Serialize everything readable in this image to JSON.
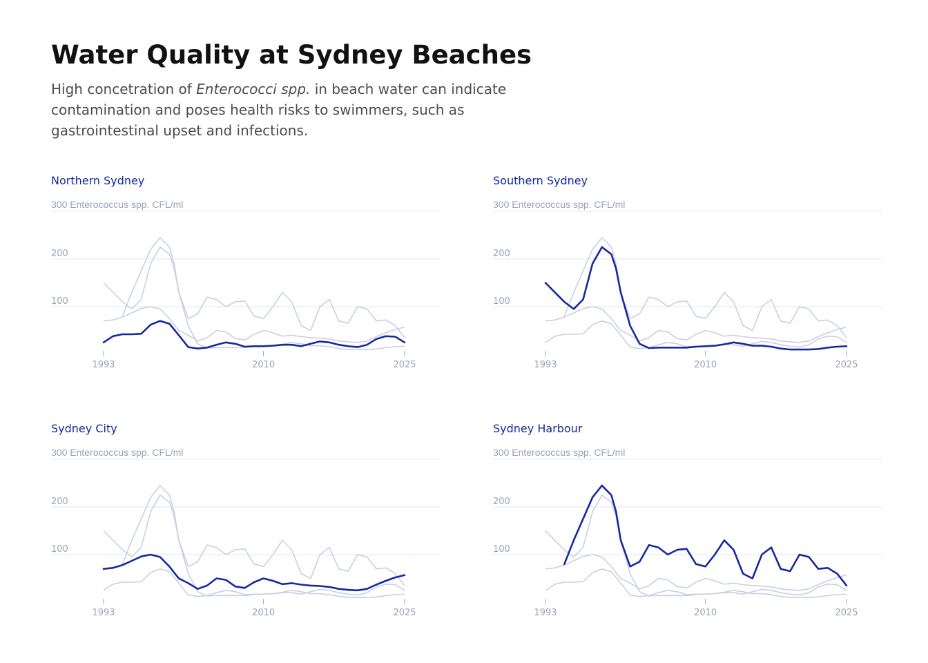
{
  "header": {
    "title": "Water Quality at Sydney Beaches",
    "subtitle_before": "High concetration of ",
    "subtitle_italic": "Enterococci spp.",
    "subtitle_after": " in beach water can indicate contamination and poses health risks to swimmers, such as gastrointestinal upset and infections."
  },
  "colors": {
    "highlight": "#1428a0",
    "context": "#c9cfe4",
    "grid": "#e3e5ec",
    "muted_text": "#9aa0b8"
  },
  "chart_data": {
    "type": "line",
    "unit_label": "300 Enterococcus spp. CFL/ml",
    "ylim": [
      0,
      300
    ],
    "y_ticks": [
      100,
      200
    ],
    "x_ticks": [
      1993,
      2010,
      2025
    ],
    "xlim": [
      1993,
      2025
    ],
    "grid": true,
    "panel_order": [
      "Northern Sydney",
      "Southern Sydney",
      "Sydney City",
      "Sydney Harbour"
    ],
    "series": [
      {
        "name": "Northern Sydney",
        "x": [
          1993,
          1994,
          1995,
          1996,
          1997,
          1998,
          1999,
          2000,
          2000.5,
          2001,
          2002,
          2003,
          2004,
          2005,
          2006,
          2007,
          2008,
          2009,
          2010,
          2011,
          2012,
          2013,
          2014,
          2015,
          2016,
          2017,
          2018,
          2019,
          2020,
          2021,
          2022,
          2023,
          2024,
          2025
        ],
        "y": [
          25,
          38,
          42,
          42,
          43,
          62,
          70,
          64,
          52,
          40,
          15,
          12,
          14,
          20,
          25,
          22,
          16,
          17,
          17,
          18,
          20,
          20,
          17,
          22,
          27,
          25,
          20,
          17,
          15,
          20,
          32,
          38,
          37,
          25
        ]
      },
      {
        "name": "Southern Sydney",
        "x": [
          1993,
          1994,
          1995,
          1996,
          1997,
          1998,
          1999,
          2000,
          2000.5,
          2001,
          2002,
          2003,
          2004,
          2005,
          2006,
          2007,
          2008,
          2009,
          2010,
          2011,
          2012,
          2013,
          2014,
          2015,
          2016,
          2017,
          2018,
          2019,
          2020,
          2021,
          2022,
          2023,
          2024,
          2025
        ],
        "y": [
          150,
          130,
          110,
          95,
          115,
          190,
          225,
          210,
          180,
          130,
          60,
          22,
          13,
          14,
          14,
          14,
          14,
          16,
          17,
          18,
          21,
          25,
          22,
          18,
          18,
          16,
          12,
          10,
          10,
          10,
          11,
          14,
          16,
          17
        ]
      },
      {
        "name": "Sydney City",
        "x": [
          1993,
          1994,
          1995,
          1996,
          1997,
          1998,
          1999,
          2000,
          2000.5,
          2001,
          2002,
          2003,
          2004,
          2005,
          2006,
          2007,
          2008,
          2009,
          2010,
          2011,
          2012,
          2013,
          2014,
          2015,
          2016,
          2017,
          2018,
          2019,
          2020,
          2021,
          2022,
          2023,
          2024,
          2025
        ],
        "y": [
          70,
          72,
          78,
          87,
          96,
          100,
          95,
          75,
          62,
          50,
          40,
          28,
          35,
          50,
          47,
          33,
          30,
          42,
          50,
          45,
          38,
          40,
          37,
          35,
          34,
          32,
          28,
          26,
          25,
          28,
          37,
          45,
          52,
          57
        ]
      },
      {
        "name": "Sydney Harbour",
        "x": [
          1995,
          1996,
          1997,
          1998,
          1999,
          2000,
          2000.5,
          2001,
          2002,
          2003,
          2004,
          2005,
          2006,
          2007,
          2008,
          2009,
          2010,
          2011,
          2012,
          2013,
          2014,
          2015,
          2016,
          2017,
          2018,
          2019,
          2020,
          2021,
          2022,
          2023,
          2024,
          2025
        ],
        "y": [
          80,
          130,
          175,
          220,
          245,
          225,
          190,
          130,
          75,
          85,
          120,
          115,
          100,
          110,
          112,
          80,
          75,
          100,
          130,
          110,
          60,
          50,
          100,
          115,
          70,
          65,
          100,
          95,
          70,
          72,
          60,
          35
        ]
      }
    ]
  }
}
